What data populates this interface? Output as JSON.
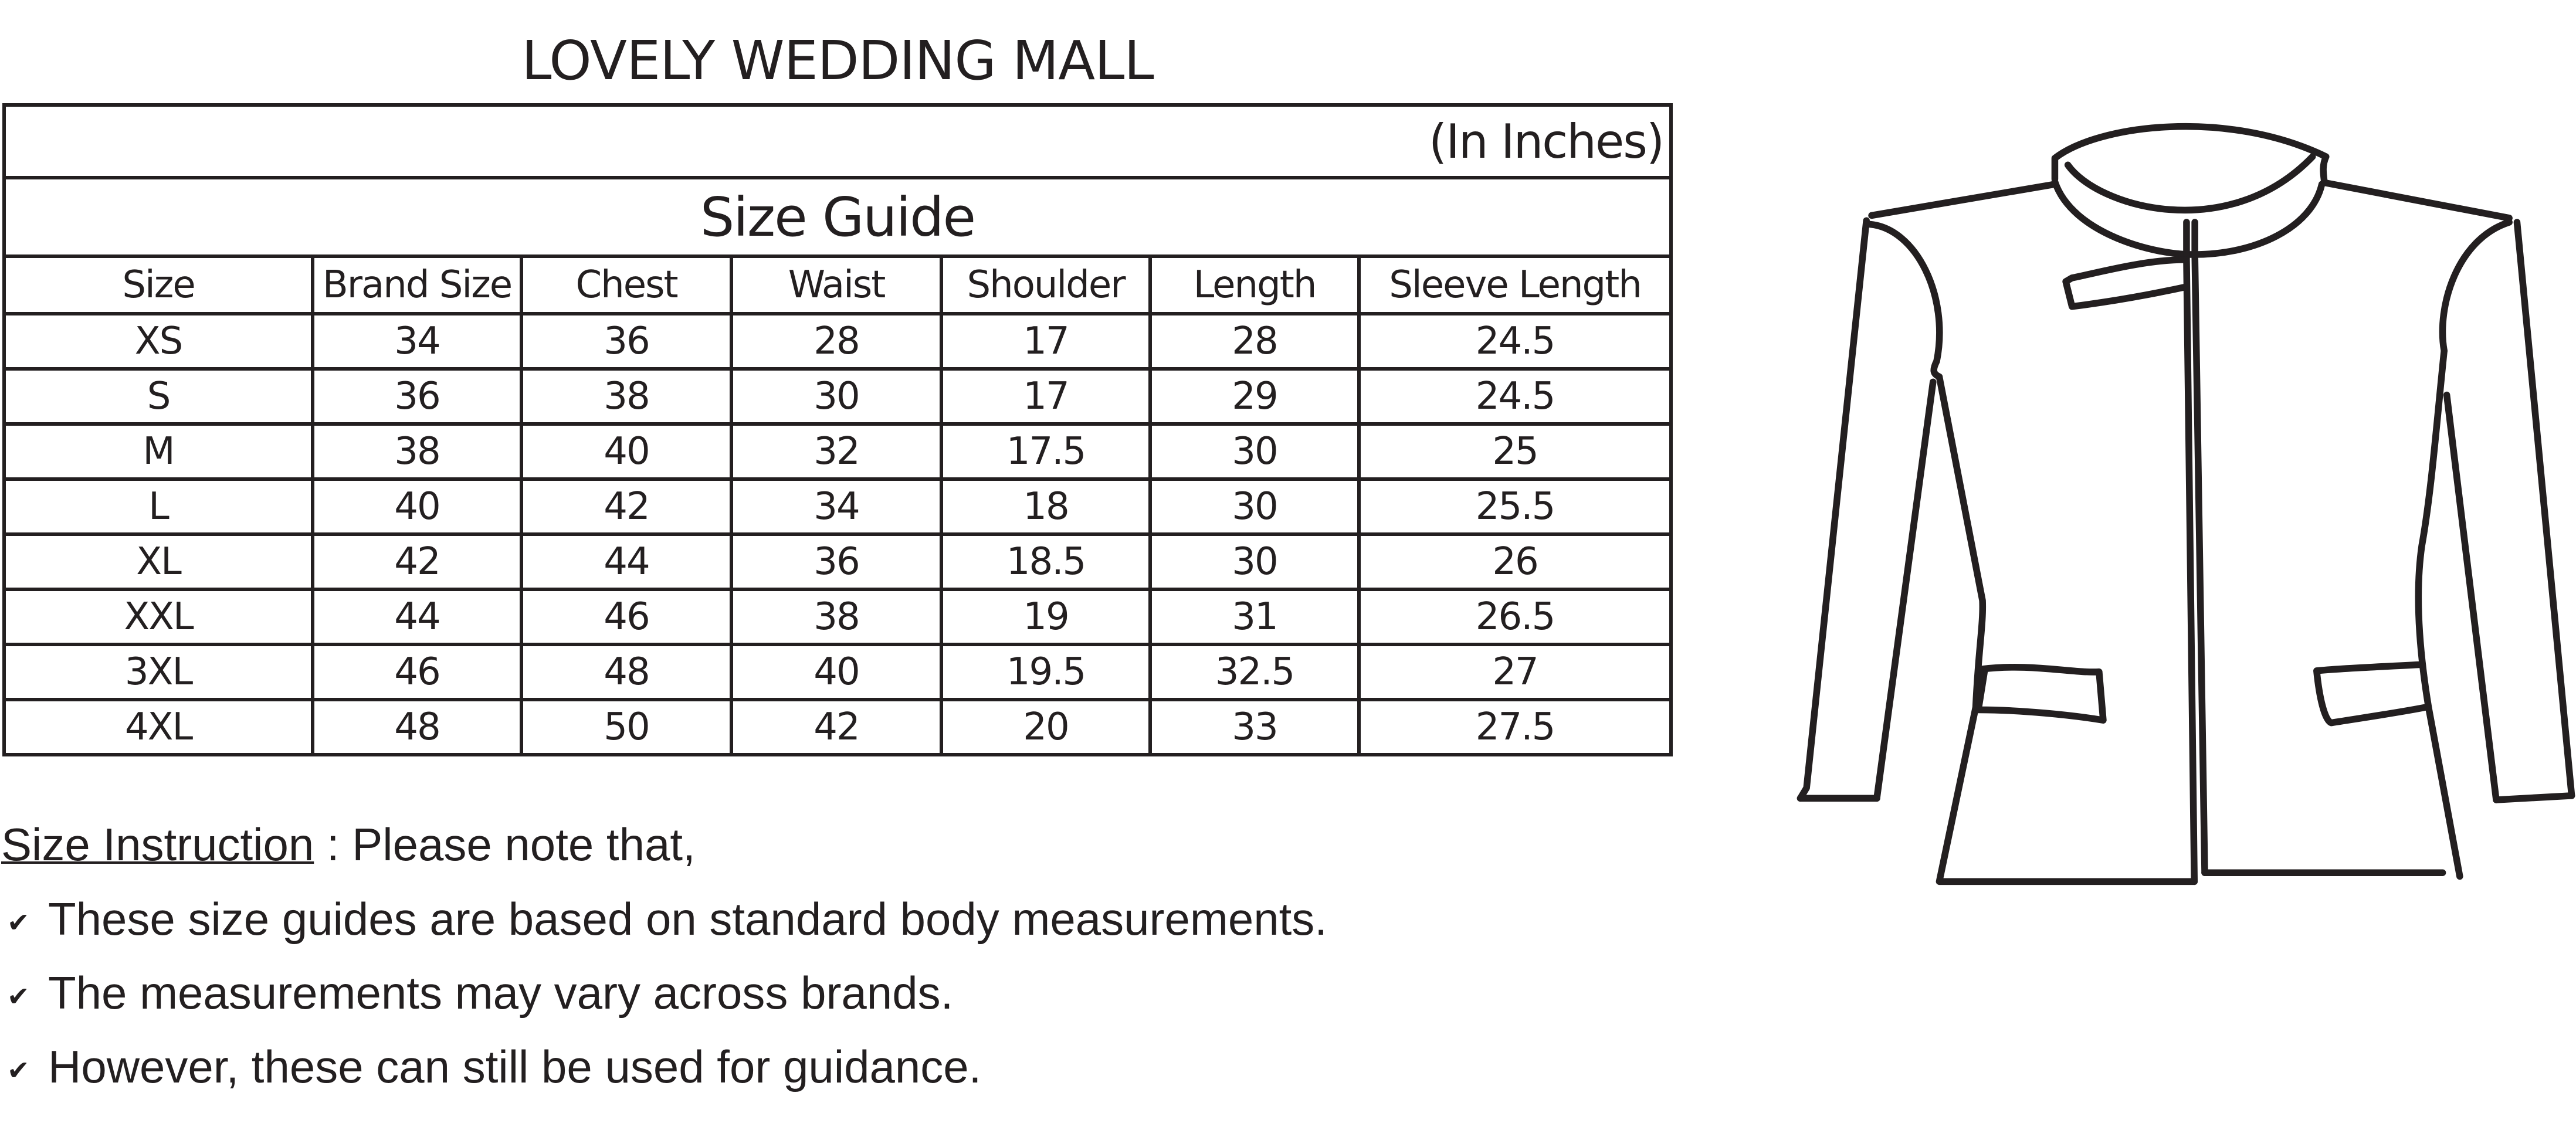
{
  "title": "LOVELY WEDDING MALL",
  "table": {
    "units": "(In Inches)",
    "heading": "Size Guide",
    "columns": [
      "Size",
      "Brand Size",
      "Chest",
      "Waist",
      "Shoulder",
      "Length",
      "Sleeve Length"
    ],
    "rows": [
      [
        "XS",
        "34",
        "36",
        "28",
        "17",
        "28",
        "24.5"
      ],
      [
        "S",
        "36",
        "38",
        "30",
        "17",
        "29",
        "24.5"
      ],
      [
        "M",
        "38",
        "40",
        "32",
        "17.5",
        "30",
        "25"
      ],
      [
        "L",
        "40",
        "42",
        "34",
        "18",
        "30",
        "25.5"
      ],
      [
        "XL",
        "42",
        "44",
        "36",
        "18.5",
        "30",
        "26"
      ],
      [
        "XXL",
        "44",
        "46",
        "38",
        "19",
        "31",
        "26.5"
      ],
      [
        "3XL",
        "46",
        "48",
        "40",
        "19.5",
        "32.5",
        "27"
      ],
      [
        "4XL",
        "48",
        "50",
        "42",
        "20",
        "33",
        "27.5"
      ]
    ]
  },
  "instructions": {
    "label": "Size Instruction",
    "intro": " : Please note that,",
    "check_icon": "check-icon",
    "items": [
      "These size guides are based on standard body measurements.",
      "The measurements may vary across brands.",
      "However, these can still be used for guidance."
    ]
  },
  "illustration": "jacket-line-drawing"
}
